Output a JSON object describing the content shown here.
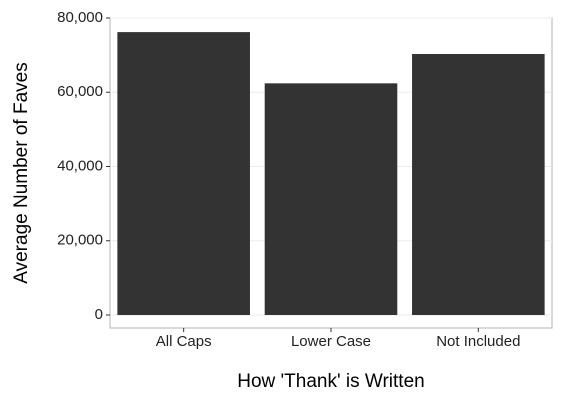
{
  "chart_data": {
    "type": "bar",
    "x_label": "How 'Thank' is Written",
    "y_label": "Average Number of Faves",
    "categories": [
      "All Caps",
      "Lower Case",
      "Not Included"
    ],
    "values": [
      76200,
      62400,
      70300
    ],
    "color": "#333333",
    "ylim": [
      -3500,
      80000
    ],
    "yticks": [
      0,
      {
        "value": 20000,
        "label": "20,000"
      },
      {
        "value": 40000,
        "label": "40,000"
      },
      {
        "value": 60000,
        "label": "60,000"
      },
      {
        "value": 80000,
        "label": "80,000"
      }
    ],
    "grid": true
  }
}
